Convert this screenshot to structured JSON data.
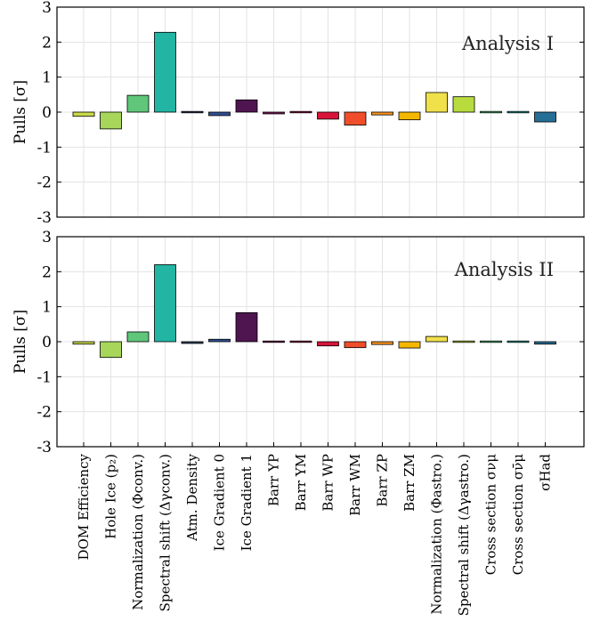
{
  "chart_data": {
    "type": "bar",
    "categories": [
      "DOM Efficiency",
      "Hole Ice (p₂)",
      "Normalization (Φconv.)",
      "Spectral shift (Δγconv.)",
      "Atm. Density",
      "Ice Gradient 0",
      "Ice Gradient 1",
      "Barr YP",
      "Barr YM",
      "Barr WP",
      "Barr WM",
      "Barr ZP",
      "Barr ZM",
      "Normalization (Φastro.)",
      "Spectral shift (Δγastro.)",
      "Cross section σνμ",
      "Cross section σν̄μ",
      "σHad"
    ],
    "colors": [
      "#c9d94a",
      "#a8d65a",
      "#5fc67a",
      "#22b5a4",
      "#2c3e5e",
      "#2f4e8f",
      "#4e1550",
      "#7a1650",
      "#9c174e",
      "#d8143a",
      "#f04e2a",
      "#f7931e",
      "#f5b800",
      "#f0e04a",
      "#b8dc3e",
      "#4ec27a",
      "#2aa89a",
      "#256f96"
    ],
    "ylabel": "Pulls [σ]",
    "ylim": [
      -3,
      3
    ],
    "yticks": [
      "3",
      "2",
      "1",
      "0",
      "-1",
      "-2",
      "-3"
    ],
    "grid": true,
    "panels": [
      {
        "title": "Analysis I",
        "values": [
          -0.12,
          -0.48,
          0.48,
          2.28,
          -0.03,
          -0.1,
          0.35,
          -0.05,
          -0.03,
          -0.2,
          -0.37,
          -0.08,
          -0.22,
          0.56,
          0.44,
          0.0,
          0.0,
          -0.28
        ]
      },
      {
        "title": "Analysis II",
        "values": [
          -0.07,
          -0.45,
          0.28,
          2.2,
          -0.05,
          0.07,
          0.83,
          0.02,
          0.0,
          -0.12,
          -0.17,
          -0.08,
          -0.18,
          0.15,
          0.0,
          0.0,
          0.0,
          -0.07
        ]
      }
    ]
  }
}
